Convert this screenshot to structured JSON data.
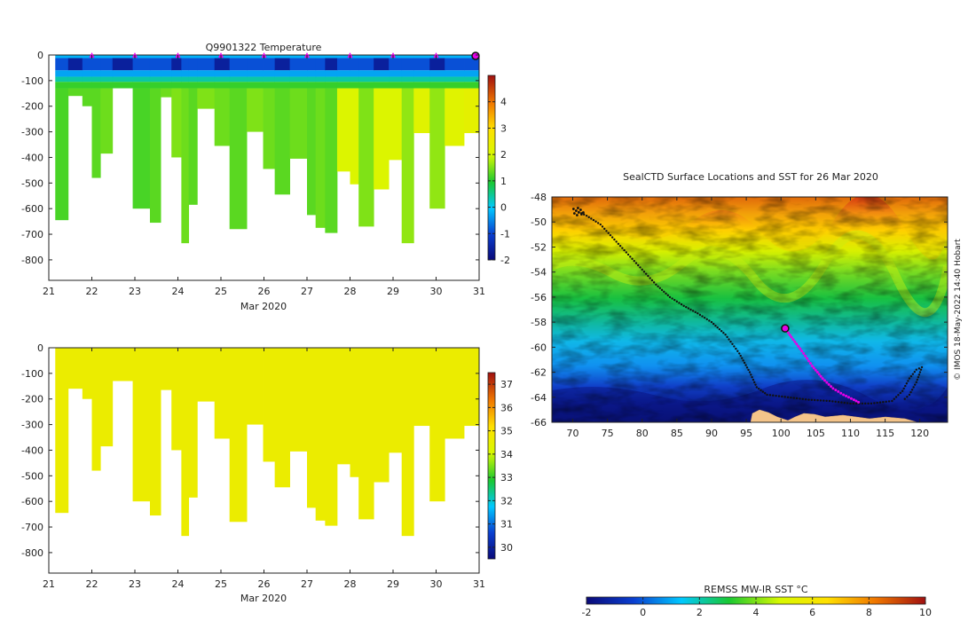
{
  "chart_data": [
    {
      "type": "heatmap",
      "name": "temperature-section",
      "title": "Q9901322  Temperature",
      "xlabel": "Mar 2020",
      "xlim": [
        21,
        31
      ],
      "ylim": [
        -880,
        0
      ],
      "xticks": [
        "21",
        "22",
        "23",
        "24",
        "25",
        "26",
        "27",
        "28",
        "29",
        "30",
        "31"
      ],
      "yticks": [
        "0",
        "-100",
        "-200",
        "-300",
        "-400",
        "-500",
        "-600",
        "-700",
        "-800"
      ],
      "colorbar": {
        "min": -2,
        "max": 5,
        "ticks": [
          "-2",
          "-1",
          "0",
          "1",
          "2",
          "3",
          "4"
        ]
      },
      "profile_markers": [
        22,
        23,
        24,
        25,
        26,
        27,
        28,
        29,
        30
      ],
      "profiles": [
        {
          "start": 21.15,
          "end": 21.45,
          "depth": 645,
          "deep_value": 1.2
        },
        {
          "start": 21.45,
          "end": 21.78,
          "depth": 160,
          "deep_value": 1.3
        },
        {
          "start": 21.78,
          "end": 22.0,
          "depth": 200,
          "deep_value": 1.3
        },
        {
          "start": 22.0,
          "end": 22.2,
          "depth": 480,
          "deep_value": 1.3
        },
        {
          "start": 22.2,
          "end": 22.48,
          "depth": 385,
          "deep_value": 1.4
        },
        {
          "start": 22.48,
          "end": 22.95,
          "depth": 130,
          "deep_value": 1.5
        },
        {
          "start": 22.95,
          "end": 23.35,
          "depth": 600,
          "deep_value": 1.2
        },
        {
          "start": 23.35,
          "end": 23.6,
          "depth": 655,
          "deep_value": 1.3
        },
        {
          "start": 23.6,
          "end": 23.85,
          "depth": 165,
          "deep_value": 1.4
        },
        {
          "start": 23.85,
          "end": 24.08,
          "depth": 400,
          "deep_value": 1.5
        },
        {
          "start": 24.08,
          "end": 24.25,
          "depth": 735,
          "deep_value": 1.4
        },
        {
          "start": 24.25,
          "end": 24.45,
          "depth": 585,
          "deep_value": 1.3
        },
        {
          "start": 24.45,
          "end": 24.85,
          "depth": 210,
          "deep_value": 1.5
        },
        {
          "start": 24.85,
          "end": 25.2,
          "depth": 355,
          "deep_value": 1.4
        },
        {
          "start": 25.2,
          "end": 25.6,
          "depth": 680,
          "deep_value": 1.3
        },
        {
          "start": 25.6,
          "end": 25.98,
          "depth": 300,
          "deep_value": 1.5
        },
        {
          "start": 25.98,
          "end": 26.25,
          "depth": 445,
          "deep_value": 1.4
        },
        {
          "start": 26.25,
          "end": 26.6,
          "depth": 545,
          "deep_value": 1.3
        },
        {
          "start": 26.6,
          "end": 27.0,
          "depth": 405,
          "deep_value": 1.4
        },
        {
          "start": 27.0,
          "end": 27.2,
          "depth": 625,
          "deep_value": 1.3
        },
        {
          "start": 27.2,
          "end": 27.42,
          "depth": 675,
          "deep_value": 1.4
        },
        {
          "start": 27.42,
          "end": 27.7,
          "depth": 695,
          "deep_value": 1.3
        },
        {
          "start": 27.7,
          "end": 28.0,
          "depth": 455,
          "deep_value": 2.1
        },
        {
          "start": 28.0,
          "end": 28.2,
          "depth": 505,
          "deep_value": 2.1
        },
        {
          "start": 28.2,
          "end": 28.55,
          "depth": 670,
          "deep_value": 1.5
        },
        {
          "start": 28.55,
          "end": 28.9,
          "depth": 525,
          "deep_value": 2.1
        },
        {
          "start": 28.9,
          "end": 29.2,
          "depth": 410,
          "deep_value": 2.1
        },
        {
          "start": 29.2,
          "end": 29.48,
          "depth": 735,
          "deep_value": 1.6
        },
        {
          "start": 29.48,
          "end": 29.85,
          "depth": 305,
          "deep_value": 2.2
        },
        {
          "start": 29.85,
          "end": 30.2,
          "depth": 600,
          "deep_value": 1.6
        },
        {
          "start": 30.2,
          "end": 30.65,
          "depth": 355,
          "deep_value": 2.2
        },
        {
          "start": 30.65,
          "end": 31.0,
          "depth": 305,
          "deep_value": 2.3
        }
      ]
    },
    {
      "type": "heatmap",
      "name": "salinity-section",
      "title": "",
      "xlabel": "Mar 2020",
      "xlim": [
        21,
        31
      ],
      "ylim": [
        -880,
        0
      ],
      "xticks": [
        "21",
        "22",
        "23",
        "24",
        "25",
        "26",
        "27",
        "28",
        "29",
        "30",
        "31"
      ],
      "yticks": [
        "0",
        "-100",
        "-200",
        "-300",
        "-400",
        "-500",
        "-600",
        "-700",
        "-800"
      ],
      "colorbar": {
        "min": 29.5,
        "max": 37.5,
        "ticks": [
          "30",
          "31",
          "32",
          "33",
          "34",
          "35",
          "36",
          "37"
        ]
      },
      "fill_value": 34.6
    },
    {
      "type": "heatmap",
      "name": "sst-map",
      "title": "SealCTD Surface Locations and SST for 26 Mar 2020",
      "xlim": [
        67,
        124
      ],
      "ylim": [
        -66,
        -48
      ],
      "xticks": [
        "70",
        "75",
        "80",
        "85",
        "90",
        "95",
        "100",
        "105",
        "110",
        "115",
        "120"
      ],
      "yticks": [
        "-48",
        "-50",
        "-52",
        "-54",
        "-56",
        "-58",
        "-60",
        "-62",
        "-64",
        "-66"
      ],
      "side_label": "© IMOS 18-May-2022 14:40 Hobart",
      "colorbar": {
        "label": "REMSS MW-IR SST °C",
        "min": -2,
        "max": 10,
        "ticks": [
          "-2",
          "0",
          "2",
          "4",
          "6",
          "8",
          "10"
        ]
      },
      "current_position": {
        "lon": 100.6,
        "lat": -58.5
      },
      "track": [
        [
          70.5,
          -49.1
        ],
        [
          72,
          -49.5
        ],
        [
          74,
          -50.2
        ],
        [
          76,
          -51.4
        ],
        [
          78,
          -52.6
        ],
        [
          80,
          -53.8
        ],
        [
          82,
          -55
        ],
        [
          84,
          -56
        ],
        [
          86,
          -56.7
        ],
        [
          88,
          -57.3
        ],
        [
          90,
          -58
        ],
        [
          92,
          -59
        ],
        [
          94,
          -60.5
        ],
        [
          95.5,
          -62
        ],
        [
          96.5,
          -63.2
        ],
        [
          98,
          -63.8
        ],
        [
          101,
          -64
        ],
        [
          104,
          -64.2
        ],
        [
          107,
          -64.3
        ],
        [
          110,
          -64.5
        ],
        [
          113,
          -64.5
        ],
        [
          116,
          -64.3
        ],
        [
          117.5,
          -63.5
        ],
        [
          118.5,
          -62.5
        ],
        [
          119.5,
          -61.8
        ],
        [
          120.3,
          -61.6
        ],
        [
          119.5,
          -62.8
        ],
        [
          118.5,
          -63.8
        ],
        [
          117.5,
          -64.3
        ]
      ],
      "recent_track": [
        [
          100.6,
          -58.5
        ],
        [
          101.5,
          -59.2
        ],
        [
          103,
          -60.3
        ],
        [
          104.5,
          -61.5
        ],
        [
          106,
          -62.5
        ],
        [
          107.5,
          -63.3
        ],
        [
          109,
          -63.8
        ],
        [
          110.5,
          -64.2
        ],
        [
          111.5,
          -64.5
        ]
      ]
    }
  ]
}
